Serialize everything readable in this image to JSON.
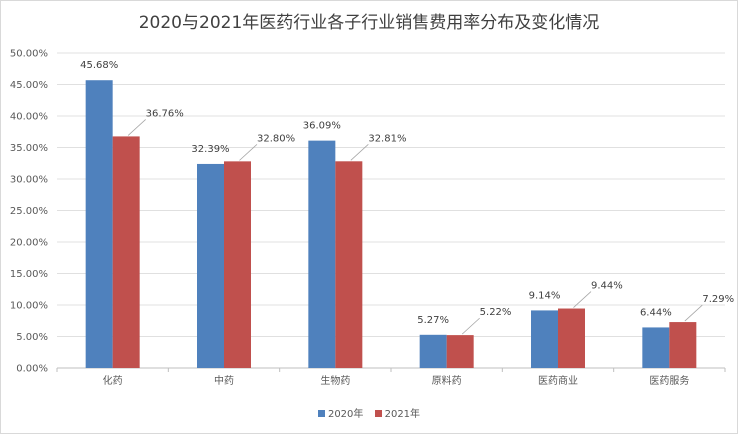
{
  "chart_data": {
    "type": "bar",
    "title": "2020与2021年医药行业各子行业销售费用率分布及变化情况",
    "categories": [
      "化药",
      "中药",
      "生物药",
      "原料药",
      "医药商业",
      "医药服务"
    ],
    "series": [
      {
        "name": "2020年",
        "color": "#4f81bd",
        "values": [
          45.68,
          32.39,
          36.09,
          5.27,
          9.14,
          6.44
        ],
        "labels": [
          "45.68%",
          "32.39%",
          "36.09%",
          "5.27%",
          "9.14%",
          "6.44%"
        ]
      },
      {
        "name": "2021年",
        "color": "#c0504d",
        "values": [
          36.76,
          32.8,
          32.81,
          5.22,
          9.44,
          7.29
        ],
        "labels": [
          "36.76%",
          "32.80%",
          "32.81%",
          "5.22%",
          "9.44%",
          "7.29%"
        ]
      }
    ],
    "yticks": [
      "0.00%",
      "5.00%",
      "10.00%",
      "15.00%",
      "20.00%",
      "25.00%",
      "30.00%",
      "35.00%",
      "40.00%",
      "45.00%",
      "50.00%"
    ],
    "ylim": [
      0,
      50
    ],
    "grid": true,
    "legend_position": "bottom"
  }
}
